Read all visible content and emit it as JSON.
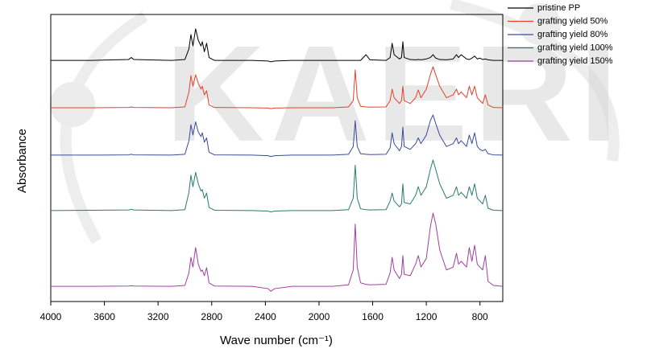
{
  "chart_data": {
    "type": "line",
    "watermark": "KAERI",
    "xlabel": "Wave number (cm⁻¹)",
    "ylabel": "Absorbance",
    "xlim": [
      4000,
      630
    ],
    "ylim": [
      0,
      100
    ],
    "xticks": [
      4000,
      3600,
      3200,
      2800,
      2400,
      2000,
      1600,
      1200,
      800
    ],
    "legend": "upper right",
    "x": [
      4000,
      3700,
      3420,
      3400,
      3380,
      3100,
      3000,
      2970,
      2955,
      2940,
      2920,
      2900,
      2880,
      2870,
      2855,
      2838,
      2820,
      2780,
      2500,
      2380,
      2360,
      2330,
      2200,
      1900,
      1780,
      1745,
      1730,
      1715,
      1690,
      1650,
      1620,
      1500,
      1470,
      1455,
      1440,
      1400,
      1385,
      1375,
      1365,
      1320,
      1280,
      1260,
      1240,
      1200,
      1170,
      1150,
      1130,
      1100,
      1050,
      1000,
      975,
      960,
      940,
      900,
      880,
      860,
      840,
      820,
      800,
      780,
      760,
      740,
      700,
      630
    ],
    "series": [
      {
        "name": "pristine PP",
        "color": "#000000",
        "values": [
          84,
          84,
          84.3,
          85,
          84.3,
          84,
          84.3,
          88,
          93,
          89,
          95,
          91,
          89,
          90.5,
          87,
          90,
          85,
          84,
          84,
          83.8,
          83.5,
          83.8,
          84,
          84,
          84,
          84,
          84,
          84,
          84,
          86,
          84.2,
          84,
          85,
          90,
          86,
          84.5,
          85,
          90.5,
          85,
          84.3,
          84.2,
          84.3,
          84.2,
          84.5,
          85,
          86,
          84.8,
          84.3,
          84.2,
          84.5,
          86,
          85,
          86,
          84.5,
          84.3,
          84.8,
          85.5,
          84.5,
          84.8,
          84.3,
          84.5,
          84.2,
          84,
          84
        ]
      },
      {
        "name": "grafting yield 50%",
        "color": "#e8402a",
        "values": [
          67.5,
          67.5,
          67.6,
          67.8,
          67.6,
          67.5,
          67.8,
          73,
          78.7,
          75,
          79,
          76,
          74,
          75,
          72,
          73.4,
          68.5,
          67.6,
          67.5,
          67.4,
          67.2,
          67.4,
          67.5,
          67.5,
          67.8,
          70,
          80.7,
          71,
          68,
          67.8,
          67.7,
          67.8,
          70,
          74,
          71,
          69,
          70,
          75,
          70,
          69,
          71,
          73.7,
          71,
          74,
          79,
          81.8,
          79,
          75,
          71,
          72,
          74,
          72,
          73,
          71,
          75,
          72,
          75,
          71,
          70,
          69,
          72,
          68.5,
          67.6,
          67.5
        ]
      },
      {
        "name": "grafting yield 80%",
        "color": "#3a4a9a",
        "values": [
          51,
          51,
          51.1,
          51.3,
          51.1,
          51,
          51.3,
          56,
          61.6,
          58,
          62.6,
          59,
          57.5,
          58.8,
          55.5,
          57,
          52,
          51.1,
          51,
          50.8,
          50.5,
          50.8,
          51,
          51,
          51.3,
          54,
          63,
          54,
          51.5,
          51.3,
          51.2,
          51.3,
          53.5,
          58.8,
          55,
          52.5,
          54,
          60.8,
          54,
          53,
          55,
          57,
          55,
          58,
          63,
          65,
          62,
          58,
          54,
          55,
          57,
          55,
          56,
          54,
          58,
          55,
          58.8,
          54,
          53,
          52.5,
          53,
          51.5,
          51.1,
          51
        ]
      },
      {
        "name": "grafting yield 100%",
        "color": "#2a7a70",
        "values": [
          31.7,
          31.8,
          31.9,
          32.1,
          31.9,
          31.7,
          32,
          38,
          44,
          40,
          45,
          41,
          38.5,
          39,
          36,
          37.8,
          32.8,
          31.8,
          31.7,
          31.5,
          31.2,
          31.5,
          31.7,
          31.7,
          32,
          36,
          47.5,
          36,
          32.3,
          32,
          31.9,
          32,
          35,
          37.8,
          35,
          33,
          34,
          41,
          34.5,
          34,
          37,
          40,
          37,
          40,
          46,
          49.3,
          46,
          41,
          36,
          37,
          40,
          37,
          38,
          36,
          40,
          37,
          41,
          36,
          35,
          34,
          37,
          32.5,
          31.8,
          31.7
        ]
      },
      {
        "name": "grafting yield 150%",
        "color": "#a040a0",
        "values": [
          5.3,
          5.3,
          5.4,
          5.5,
          5.4,
          5.3,
          5.6,
          10,
          15.4,
          12,
          18.8,
          13,
          10.5,
          11,
          9,
          11.8,
          6.5,
          5.4,
          5.3,
          4.5,
          3.6,
          4.5,
          5.3,
          5.3,
          5.8,
          11,
          27,
          12,
          6.5,
          6,
          5.8,
          6,
          10,
          15.4,
          11,
          8,
          9.5,
          16,
          9.5,
          9,
          13,
          16,
          12,
          15,
          26,
          30.8,
          27,
          18,
          11,
          12,
          16.8,
          13,
          14,
          12,
          18.8,
          14,
          19.6,
          13,
          12,
          11,
          16,
          7,
          5.6,
          5.3
        ]
      }
    ]
  }
}
